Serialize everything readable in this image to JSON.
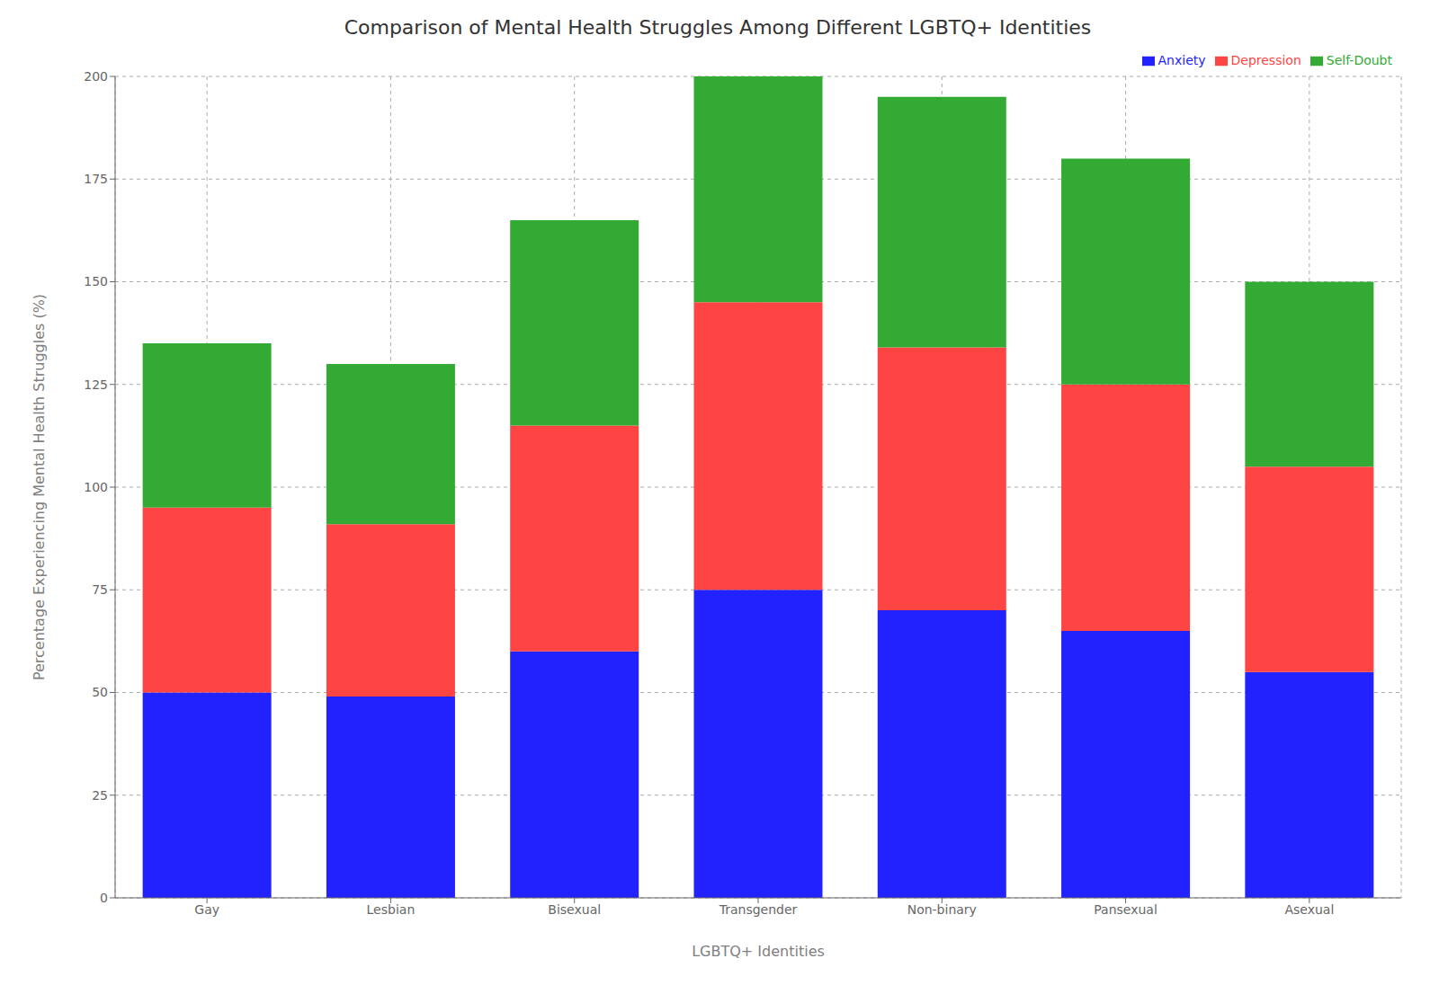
{
  "chart_data": {
    "type": "bar",
    "title": "Comparison of Mental Health Struggles Among Different LGBTQ+ Identities",
    "xlabel": "LGBTQ+ Identities",
    "ylabel": "Percentage Experiencing Mental Health Struggles (%)",
    "categories": [
      "Gay",
      "Lesbian",
      "Bisexual",
      "Transgender",
      "Non-binary",
      "Pansexual",
      "Asexual"
    ],
    "series": [
      {
        "name": "Anxiety",
        "color": "#2222ff",
        "values": [
          50,
          49,
          60,
          75,
          70,
          65,
          55
        ]
      },
      {
        "name": "Depression",
        "color": "#ff4444",
        "values": [
          45,
          42,
          55,
          70,
          64,
          60,
          50
        ]
      },
      {
        "name": "Self-Doubt",
        "color": "#33aa33",
        "values": [
          40,
          39,
          50,
          55,
          61,
          55,
          45
        ]
      }
    ],
    "stacked": true,
    "ylim": [
      0,
      200
    ],
    "yticks": [
      0,
      25,
      50,
      75,
      100,
      125,
      150,
      175,
      200
    ],
    "grid": true,
    "legend": "upper right"
  }
}
